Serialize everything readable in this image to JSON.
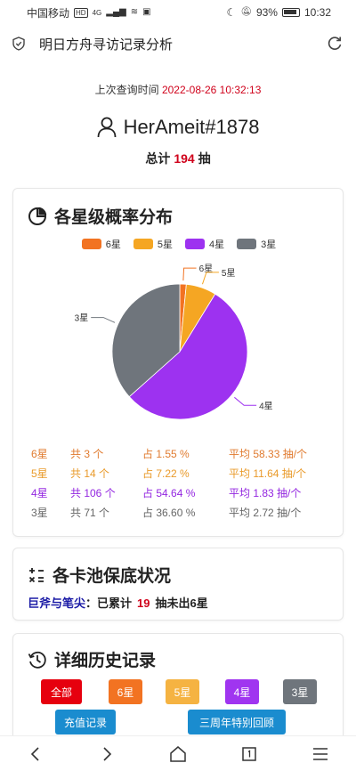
{
  "statusbar": {
    "carrier": "中国移动",
    "hd_badge": "HD",
    "network": "4G",
    "battery": "93%",
    "time": "10:32"
  },
  "header": {
    "title": "明日方舟寻访记录分析"
  },
  "summary": {
    "last_query_label": "上次查询时间",
    "last_query_time": "2022-08-26 10:32:13",
    "username": "HerAmeit#1878",
    "total_prefix": "总计",
    "total_count": "194",
    "total_suffix": "抽"
  },
  "distribution": {
    "title": "各星级概率分布",
    "colors": {
      "6星": "#f27322",
      "5星": "#f5a623",
      "4星": "#9d32f0",
      "3星": "#6f757c"
    },
    "legend": [
      "6星",
      "5星",
      "4星",
      "3星"
    ],
    "stats": [
      {
        "label": "6星",
        "count": "共 3 个",
        "percent": "占 1.55 %",
        "avg": "平均 58.33 抽/个",
        "color": "#e07a2e"
      },
      {
        "label": "5星",
        "count": "共 14 个",
        "percent": "占 7.22 %",
        "avg": "平均 11.64 抽/个",
        "color": "#e99a2a"
      },
      {
        "label": "4星",
        "count": "共 106 个",
        "percent": "占 54.64 %",
        "avg": "平均 1.83 抽/个",
        "color": "#9326e0"
      },
      {
        "label": "3星",
        "count": "共 71 个",
        "percent": "占 36.60 %",
        "avg": "平均 2.72 抽/个",
        "color": "#666666"
      }
    ]
  },
  "chart_data": {
    "type": "pie",
    "categories": [
      "6星",
      "5星",
      "4星",
      "3星"
    ],
    "values": [
      3,
      14,
      106,
      71
    ],
    "percentages": [
      1.55,
      7.22,
      54.64,
      36.6
    ],
    "colors": [
      "#f27322",
      "#f5a623",
      "#9d32f0",
      "#6f757c"
    ],
    "legend_position": "top"
  },
  "pool_status": {
    "title": "各卡池保底状况",
    "pool_name": "巨斧与笔尖",
    "colon": "：",
    "text_before": "已累计",
    "count": "19",
    "text_after": "抽未出6星"
  },
  "history": {
    "title": "详细历史记录",
    "filters": [
      {
        "label": "全部",
        "color": "#e6000e"
      },
      {
        "label": "6星",
        "color": "#f27322"
      },
      {
        "label": "5星",
        "color": "#f5b342"
      },
      {
        "label": "4星",
        "color": "#a035f0"
      },
      {
        "label": "3星",
        "color": "#6f757c"
      }
    ],
    "extra_buttons": [
      {
        "label": "充值记录",
        "color": "#1a8ccf"
      },
      {
        "label": "三周年特别回顾",
        "color": "#1a8ccf"
      }
    ]
  }
}
